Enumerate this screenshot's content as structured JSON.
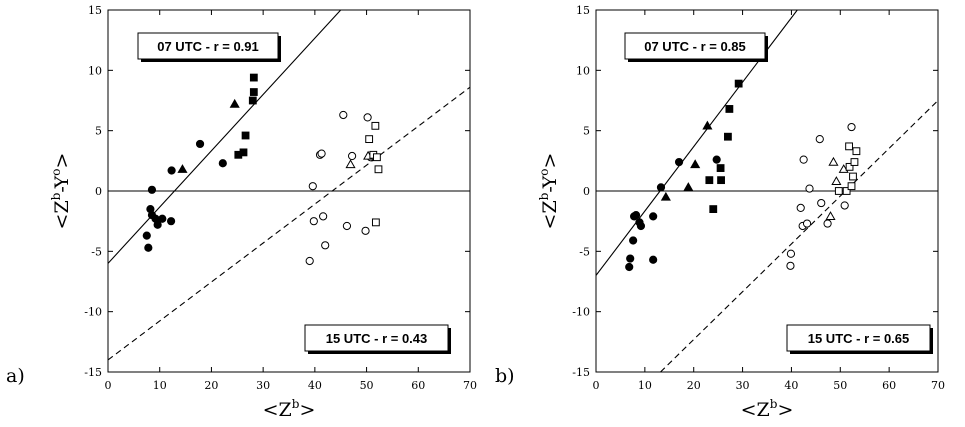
{
  "chart_data": [
    {
      "type": "scatter",
      "panel_label": "a)",
      "xlabel": {
        "base": "<Z",
        "sup": "b",
        "close": ">"
      },
      "ylabel": {
        "open": "<Z",
        "sup1": "b",
        "mid": "-Y",
        "sup2": "o",
        "close": ">"
      },
      "xlim": [
        0,
        70
      ],
      "ylim": [
        -15,
        15
      ],
      "xticks": [
        "0",
        "10",
        "20",
        "30",
        "40",
        "50",
        "60",
        "70"
      ],
      "yticks": [
        "-15",
        "-10",
        "-5",
        "0",
        "5",
        "10",
        "15"
      ],
      "annotations": [
        "07 UTC - r = 0.91",
        "15 UTC - r = 0.43"
      ],
      "lines": [
        {
          "style": "solid",
          "x": [
            0,
            45
          ],
          "y": [
            -6,
            15
          ]
        },
        {
          "style": "dashed",
          "x": [
            0,
            70
          ],
          "y": [
            -14,
            8.6
          ]
        }
      ],
      "series": [
        {
          "marker": "circle-filled",
          "points": [
            [
              7.5,
              -3.7
            ],
            [
              7.8,
              -4.7
            ],
            [
              8.2,
              -1.5
            ],
            [
              8.5,
              0.1
            ],
            [
              8.5,
              -2.0
            ],
            [
              9.2,
              -2.3
            ],
            [
              9.6,
              -2.8
            ],
            [
              10.5,
              -2.3
            ],
            [
              12.3,
              1.7
            ],
            [
              12.2,
              -2.5
            ],
            [
              17.8,
              3.9
            ],
            [
              22.2,
              2.3
            ]
          ]
        },
        {
          "marker": "triangle-filled",
          "points": [
            [
              14.4,
              1.8
            ],
            [
              24.5,
              7.2
            ]
          ]
        },
        {
          "marker": "square-filled",
          "points": [
            [
              25.2,
              3.0
            ],
            [
              26.2,
              3.2
            ],
            [
              26.6,
              4.6
            ],
            [
              28.0,
              7.5
            ],
            [
              28.2,
              8.2
            ],
            [
              28.2,
              9.4
            ]
          ]
        },
        {
          "marker": "circle-open",
          "points": [
            [
              39.0,
              -5.8
            ],
            [
              39.6,
              0.4
            ],
            [
              39.8,
              -2.5
            ],
            [
              41.0,
              3.0
            ],
            [
              41.3,
              3.1
            ],
            [
              41.6,
              -2.1
            ],
            [
              42.0,
              -4.5
            ],
            [
              45.5,
              6.3
            ],
            [
              46.2,
              -2.9
            ],
            [
              47.2,
              2.9
            ],
            [
              49.8,
              -3.3
            ],
            [
              50.2,
              6.1
            ],
            [
              50.8,
              2.8
            ]
          ]
        },
        {
          "marker": "triangle-open",
          "points": [
            [
              46.9,
              2.2
            ],
            [
              50.3,
              2.9
            ]
          ]
        },
        {
          "marker": "square-open",
          "points": [
            [
              50.5,
              4.3
            ],
            [
              51.3,
              3.0
            ],
            [
              51.7,
              5.4
            ],
            [
              51.8,
              -2.6
            ],
            [
              52.0,
              2.8
            ],
            [
              52.3,
              1.8
            ]
          ]
        }
      ]
    },
    {
      "type": "scatter",
      "panel_label": "b)",
      "xlabel": {
        "base": "<Z",
        "sup": "b",
        "close": ">"
      },
      "ylabel": {
        "open": "<Z",
        "sup1": "b",
        "mid": "-Y",
        "sup2": "o",
        "close": ">"
      },
      "xlim": [
        0,
        70
      ],
      "ylim": [
        -15,
        15
      ],
      "xticks": [
        "0",
        "10",
        "20",
        "30",
        "40",
        "50",
        "60",
        "70"
      ],
      "yticks": [
        "-15",
        "-10",
        "-5",
        "0",
        "5",
        "10",
        "15"
      ],
      "annotations": [
        "07 UTC - r = 0.85",
        "15 UTC - r = 0.65"
      ],
      "lines": [
        {
          "style": "solid",
          "x": [
            0,
            41.2
          ],
          "y": [
            -7,
            15
          ]
        },
        {
          "style": "dashed",
          "x": [
            13.2,
            70
          ],
          "y": [
            -15,
            7.5
          ]
        }
      ],
      "series": [
        {
          "marker": "circle-filled",
          "points": [
            [
              6.8,
              -6.3
            ],
            [
              7.0,
              -5.6
            ],
            [
              7.6,
              -4.1
            ],
            [
              7.8,
              -2.1
            ],
            [
              8.2,
              -2.0
            ],
            [
              8.9,
              -2.6
            ],
            [
              9.2,
              -2.9
            ],
            [
              11.7,
              -2.1
            ],
            [
              11.7,
              -5.7
            ],
            [
              13.3,
              0.3
            ],
            [
              17.0,
              2.4
            ],
            [
              24.7,
              2.6
            ]
          ]
        },
        {
          "marker": "triangle-filled",
          "points": [
            [
              14.3,
              -0.5
            ],
            [
              18.9,
              0.3
            ],
            [
              20.3,
              2.2
            ],
            [
              22.8,
              5.4
            ]
          ]
        },
        {
          "marker": "square-filled",
          "points": [
            [
              23.2,
              0.9
            ],
            [
              24.0,
              -1.5
            ],
            [
              25.5,
              1.9
            ],
            [
              25.6,
              0.9
            ],
            [
              27.0,
              4.5
            ],
            [
              27.3,
              6.8
            ],
            [
              29.2,
              8.9
            ]
          ]
        },
        {
          "marker": "circle-open",
          "points": [
            [
              39.8,
              -6.2
            ],
            [
              39.9,
              -5.2
            ],
            [
              41.9,
              -1.4
            ],
            [
              42.3,
              -2.9
            ],
            [
              42.5,
              2.6
            ],
            [
              43.2,
              -2.7
            ],
            [
              43.7,
              0.2
            ],
            [
              45.8,
              4.3
            ],
            [
              46.1,
              -1.0
            ],
            [
              47.4,
              -2.7
            ],
            [
              50.9,
              -1.2
            ],
            [
              52.3,
              5.3
            ]
          ]
        },
        {
          "marker": "triangle-open",
          "points": [
            [
              48.0,
              -2.1
            ],
            [
              48.6,
              2.4
            ],
            [
              49.2,
              0.8
            ],
            [
              50.7,
              1.8
            ]
          ]
        },
        {
          "marker": "square-open",
          "points": [
            [
              49.7,
              0.0
            ],
            [
              51.3,
              0.0
            ],
            [
              51.8,
              3.7
            ],
            [
              51.9,
              2.0
            ],
            [
              52.3,
              0.4
            ],
            [
              52.6,
              1.2
            ],
            [
              52.9,
              2.4
            ],
            [
              53.3,
              3.3
            ]
          ]
        }
      ]
    }
  ]
}
